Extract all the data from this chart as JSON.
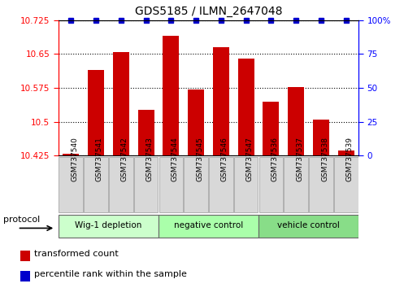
{
  "title": "GDS5185 / ILMN_2647048",
  "categories": [
    "GSM737540",
    "GSM737541",
    "GSM737542",
    "GSM737543",
    "GSM737544",
    "GSM737545",
    "GSM737546",
    "GSM737547",
    "GSM737536",
    "GSM737537",
    "GSM737538",
    "GSM737539"
  ],
  "bar_values": [
    10.428,
    10.615,
    10.655,
    10.527,
    10.69,
    10.572,
    10.665,
    10.64,
    10.545,
    10.577,
    10.505,
    10.437
  ],
  "bar_bottom": 10.425,
  "ylim_min": 10.425,
  "ylim_max": 10.725,
  "yticks": [
    10.425,
    10.5,
    10.575,
    10.65,
    10.725
  ],
  "ytick_labels": [
    "10.425",
    "10.5",
    "10.575",
    "10.65",
    "10.725"
  ],
  "right_yticks": [
    0,
    25,
    50,
    75,
    100
  ],
  "right_ytick_labels": [
    "0",
    "25",
    "50",
    "75",
    "100%"
  ],
  "bar_color": "#cc0000",
  "percentile_color": "#0000cc",
  "groups": [
    {
      "label": "Wig-1 depletion",
      "start": 0,
      "end": 4
    },
    {
      "label": "negative control",
      "start": 4,
      "end": 8
    },
    {
      "label": "vehicle control",
      "start": 8,
      "end": 12
    }
  ],
  "group_colors": [
    "#ccffcc",
    "#aaffaa",
    "#88dd88"
  ],
  "legend_items": [
    {
      "label": "transformed count",
      "color": "#cc0000"
    },
    {
      "label": "percentile rank within the sample",
      "color": "#0000cc"
    }
  ],
  "protocol_label": "protocol"
}
